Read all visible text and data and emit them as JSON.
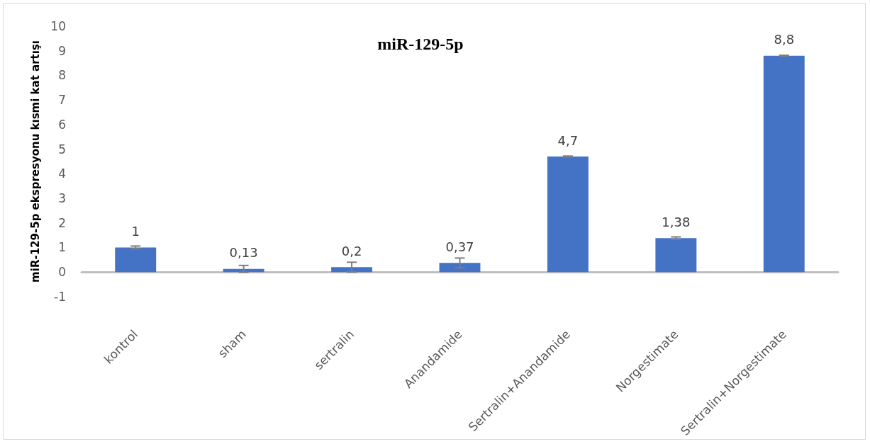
{
  "chart_data": {
    "type": "bar",
    "title": "miR-129-5p",
    "ylabel": "miR-129-5p ekspresyonu kısmi kat artışı",
    "categories": [
      "kontrol",
      "sham",
      "sertralin",
      "Anandamide",
      "Sertralin+Anandamide",
      "Norgestimate",
      "Sertralin+Norgestimate"
    ],
    "values": [
      1,
      0.13,
      0.2,
      0.37,
      4.7,
      1.38,
      8.8
    ],
    "value_labels": [
      "1",
      "0,13",
      "0,2",
      "0,37",
      "4,7",
      "1,38",
      "8,8"
    ],
    "errors": [
      0.06,
      0.14,
      0.2,
      0.2,
      0.02,
      0.05,
      0.02
    ],
    "color": "#4472c4",
    "ylim": [
      -1,
      10
    ],
    "yticks": [
      -1,
      0,
      1,
      2,
      3,
      4,
      5,
      6,
      7,
      8,
      9,
      10
    ]
  }
}
